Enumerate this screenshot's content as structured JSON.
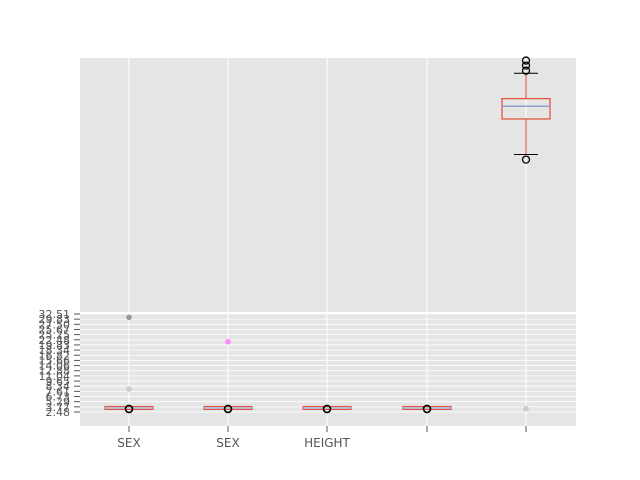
{
  "chart_data": {
    "type": "box",
    "style": "ggplot",
    "grid": true,
    "background": "#e5e5e5",
    "categories": [
      "SEX",
      "SEX",
      "HEIGHT",
      "",
      ""
    ],
    "top_panel": {
      "box": {
        "category_index": 4,
        "q1": 0.76,
        "median": 0.81,
        "q3": 0.84,
        "whisker_low": 0.62,
        "whisker_high": 0.94,
        "outliers": [
          0.6,
          0.95,
          0.97,
          0.99
        ]
      },
      "box_color": "#e24a33",
      "median_color": "#8da0cb"
    },
    "bottom_panel": {
      "y_tick_labels": [
        "32.51",
        "29.83",
        "27.50",
        "25.67",
        "25.25",
        "22.48",
        "19.83",
        "18.34",
        "16.82",
        "15.66",
        "14.06",
        "12.88",
        "11.04",
        "9.65",
        "8.34",
        "7.61",
        "6.73",
        "5.29",
        "3.77",
        "2.48"
      ],
      "boxes": [
        {
          "category_index": 0,
          "value": 2.5
        },
        {
          "category_index": 1,
          "value": 2.5
        },
        {
          "category_index": 2,
          "value": 2.5
        },
        {
          "category_index": 3,
          "value": 2.5
        }
      ],
      "scatter_points": [
        {
          "category_index": 0,
          "value": 31.5,
          "color": "#999999"
        },
        {
          "category_index": 1,
          "value": 24.0,
          "color": "#ff88ff"
        },
        {
          "category_index": 0,
          "value": 9.5,
          "color": "#cccccc"
        },
        {
          "category_index": 4,
          "value": 3.5,
          "color": "#cccccc"
        }
      ],
      "box_color": "#e24a33",
      "median_color": "#8da0cb"
    }
  }
}
